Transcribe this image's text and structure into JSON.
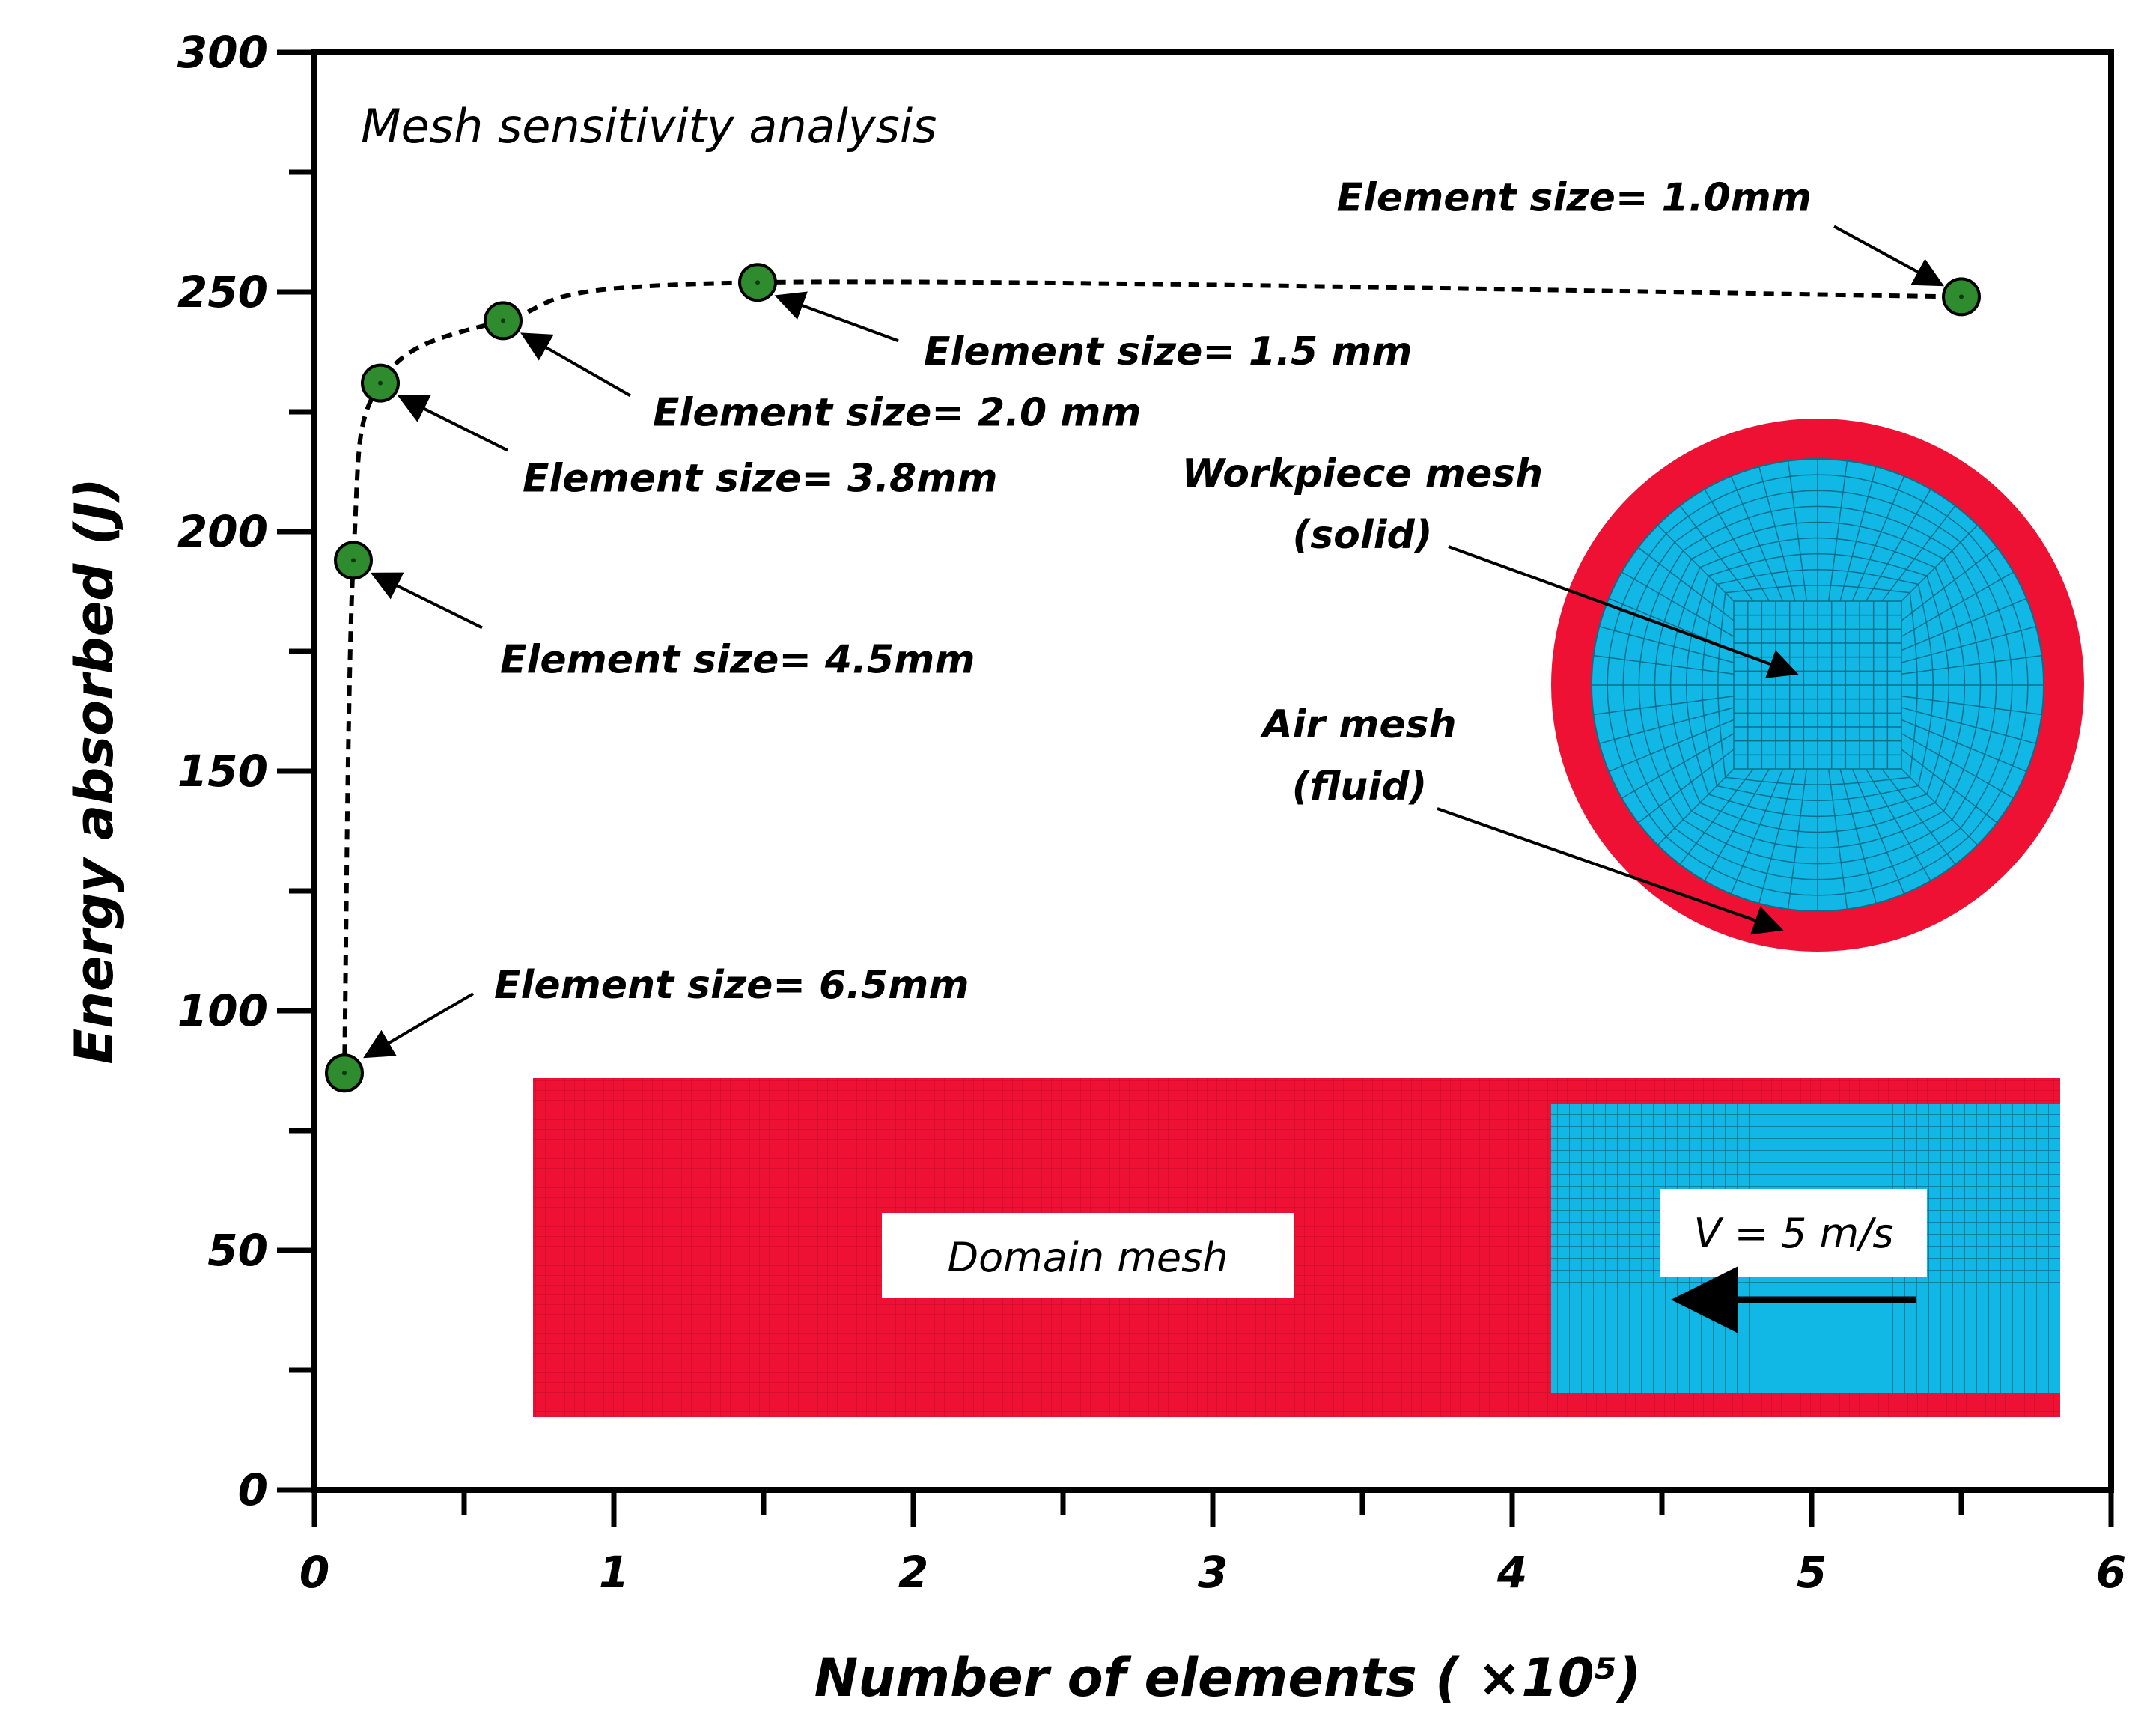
{
  "chart_data": {
    "type": "scatter",
    "title": "Mesh sensitivity analysis",
    "xlabel": "Number of elements ( ×10⁵)",
    "ylabel": "Energy absorbed (J)",
    "xlim": [
      0,
      6
    ],
    "ylim": [
      0,
      300
    ],
    "xticks": [
      0,
      1,
      2,
      3,
      4,
      5,
      6
    ],
    "yticks": [
      0,
      50,
      100,
      150,
      200,
      250,
      300
    ],
    "grid": false,
    "marker_color": "#2e8b2e",
    "line_style": "dashed",
    "points": [
      {
        "x": 0.1,
        "y": 87,
        "label": "Element size= 6.5mm"
      },
      {
        "x": 0.13,
        "y": 194,
        "label": "Element size= 4.5mm"
      },
      {
        "x": 0.22,
        "y": 231,
        "label": "Element size= 3.8mm"
      },
      {
        "x": 0.63,
        "y": 244,
        "label": "Element size= 2.0 mm"
      },
      {
        "x": 1.48,
        "y": 252,
        "label": "Element size= 1.5 mm"
      },
      {
        "x": 5.5,
        "y": 249,
        "label": "Element size= 1.0mm"
      }
    ],
    "insets": {
      "workpiece_label": "Workpiece mesh",
      "workpiece_sub": "(solid)",
      "air_label": "Air mesh",
      "air_sub": "(fluid)",
      "domain_label": "Domain mesh",
      "velocity_label": "V = 5 m/s",
      "air_color": "#ee1133",
      "solid_color": "#11b8e6"
    }
  }
}
